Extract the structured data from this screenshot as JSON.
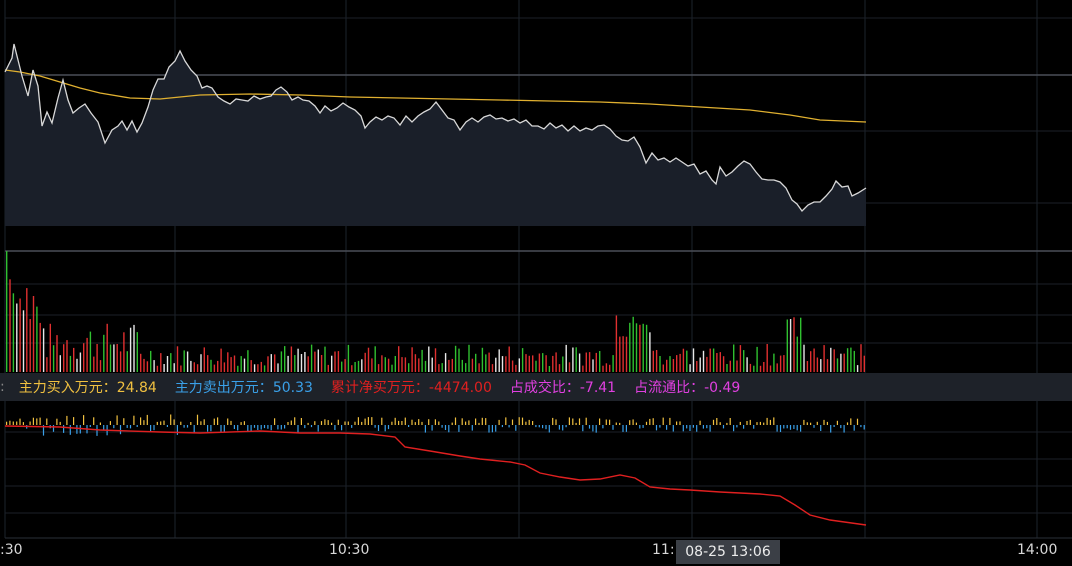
{
  "indicators": {
    "main_buy_label": "主力买入万元：",
    "main_buy_value": "24.84",
    "main_sell_label": "主力卖出万元：",
    "main_sell_value": "50.33",
    "cum_net_label": "累计净买万元：",
    "cum_net_value": "-4474.00",
    "turnover_ratio_label": "占成交比：",
    "turnover_ratio_value": "-7.41",
    "float_ratio_label": "占流通比：",
    "float_ratio_value": "-0.49"
  },
  "time_axis": {
    "labels": [
      ":30",
      "10:30",
      "11:",
      "14:00"
    ]
  },
  "crosshair": {
    "label": "08-25 13:06"
  },
  "colors": {
    "price_line": "#d8d8d8",
    "avg_line": "#e0b030",
    "main_buy": "#f0c040",
    "main_sell": "#3aa0e8",
    "net_buy": "#e02020",
    "ratio": "#e040e0",
    "volume_up": "#e03030",
    "volume_down": "#30c030",
    "volume_flat": "#e8e8e8"
  }
}
